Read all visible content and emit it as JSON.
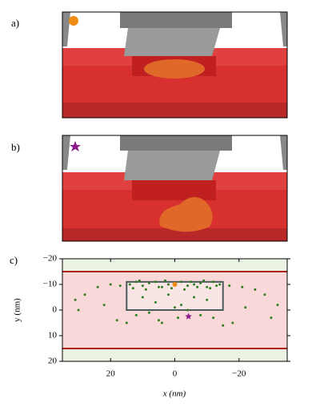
{
  "panel_labels": [
    "a)",
    "b)"
  ],
  "chart_data": {
    "type": "scatter",
    "panel_label": "c)",
    "xlabel": "x (nm)",
    "ylabel": "y (nm)",
    "xlim": [
      35,
      -35
    ],
    "ylim": [
      -20,
      20
    ],
    "xticks": [
      20,
      0,
      {
        "value": -20,
        "label": "−20"
      }
    ],
    "yticks": [
      {
        "value": -20,
        "label": "−20"
      },
      {
        "value": -10,
        "label": "−10"
      },
      0,
      10,
      20
    ],
    "hlines": {
      "color": "#b01c1c",
      "values": [
        -15,
        15
      ]
    },
    "box": {
      "color": "#4a5a5a",
      "x": [
        15,
        -15
      ],
      "y": [
        -11,
        0
      ]
    },
    "series": [
      {
        "color": "#2e7d1e",
        "marker": "circle",
        "x": [
          14,
          12,
          10,
          8,
          6,
          4,
          2,
          0,
          -2,
          -4,
          -6,
          -8,
          -10,
          -12,
          -14,
          13,
          9,
          5,
          1,
          -3,
          -7,
          -11,
          -13,
          11,
          3,
          -5,
          -9,
          24,
          20,
          17,
          -17,
          -21,
          -25,
          28,
          -28,
          31,
          -32,
          10,
          6,
          2,
          -2,
          -6,
          -10,
          8,
          -4,
          0,
          12,
          -12,
          4,
          -8,
          22,
          -22,
          30,
          -30,
          18,
          -18,
          5,
          -1,
          15,
          -15
        ],
        "values": [
          -10,
          -11,
          -9.5,
          -10.5,
          -11,
          -9,
          -10,
          -10.5,
          -11,
          -9.5,
          -10,
          -10.5,
          -9,
          -11,
          -10,
          -8.5,
          -8,
          -9,
          -8.5,
          -8,
          -9,
          -8.5,
          -9.5,
          -11.5,
          -11.5,
          -11,
          -11.5,
          -9,
          -10,
          -9.5,
          -9.5,
          -9,
          -8,
          -6,
          -6,
          -4,
          -2,
          -5,
          -3,
          -6,
          -2,
          -5,
          -4,
          1,
          0,
          -1,
          2,
          3,
          5,
          2,
          -2,
          -1,
          0,
          3,
          4,
          5,
          4,
          3,
          5,
          6
        ]
      },
      {
        "color": "#f08c14",
        "marker": "circle",
        "x": [
          0
        ],
        "values": [
          -10
        ]
      },
      {
        "color": "#8b1a8b",
        "marker": "star",
        "x": [
          -4.25
        ],
        "values": [
          2.5
        ]
      }
    ]
  }
}
